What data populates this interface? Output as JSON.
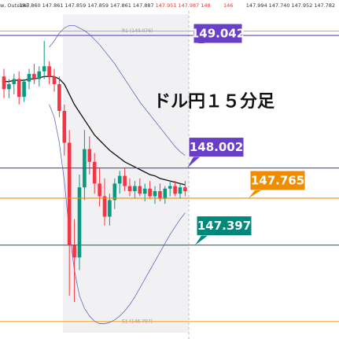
{
  "chart_data": {
    "type": "candlestick",
    "title": "ドル円１５分足",
    "ticker": [
      "ow, Outside)",
      "147.860",
      "147.861",
      "147.859",
      "147.859",
      "147.861",
      "147.887",
      "147.951",
      "147.987",
      "148",
      "146",
      "147.994",
      "147.740",
      "147.952",
      "147.782"
    ],
    "ylim": [
      146.66,
      149.32
    ],
    "open": [
      148.72,
      148.62,
      148.66,
      148.7,
      148.56,
      148.68,
      148.74,
      148.7,
      148.76,
      148.8,
      148.72,
      148.66,
      148.45,
      148.2,
      147.4,
      147.3,
      147.85,
      148.15,
      148.05,
      147.88,
      147.78,
      147.62,
      147.75,
      147.88,
      147.94,
      147.86,
      147.82,
      147.86,
      147.8,
      147.84,
      147.78,
      147.82,
      147.76,
      147.84,
      147.86,
      147.8,
      147.85
    ],
    "high": [
      148.78,
      148.7,
      148.74,
      148.76,
      148.7,
      148.78,
      148.82,
      148.8,
      149.0,
      148.84,
      148.78,
      148.72,
      148.5,
      148.3,
      147.6,
      147.95,
      148.3,
      148.25,
      148.12,
      148.0,
      147.92,
      147.8,
      147.92,
      147.98,
      148.0,
      147.92,
      147.9,
      147.92,
      147.88,
      147.9,
      147.86,
      147.88,
      147.86,
      147.9,
      147.9,
      147.88,
      147.9
    ],
    "low": [
      148.55,
      148.55,
      148.58,
      148.5,
      148.52,
      148.62,
      148.66,
      148.64,
      148.7,
      148.66,
      148.6,
      148.4,
      148.1,
      147.0,
      146.95,
      147.2,
      147.75,
      147.95,
      147.8,
      147.7,
      147.55,
      147.55,
      147.68,
      147.8,
      147.82,
      147.78,
      147.76,
      147.78,
      147.74,
      147.76,
      147.72,
      147.74,
      147.72,
      147.78,
      147.78,
      147.76,
      147.78
    ],
    "close": [
      148.62,
      148.66,
      148.7,
      148.56,
      148.68,
      148.74,
      148.7,
      148.76,
      148.8,
      148.72,
      148.66,
      148.45,
      148.2,
      147.4,
      147.3,
      147.85,
      148.15,
      148.05,
      147.88,
      147.78,
      147.62,
      147.75,
      147.88,
      147.94,
      147.86,
      147.82,
      147.86,
      147.8,
      147.84,
      147.78,
      147.82,
      147.76,
      147.84,
      147.86,
      147.8,
      147.85,
      147.82
    ],
    "up_color": "#089981",
    "down_color": "#f23645",
    "series": [
      {
        "color": "#111111",
        "values": [
          148.68,
          148.68,
          148.69,
          148.69,
          148.69,
          148.7,
          148.7,
          148.71,
          148.72,
          148.72,
          148.72,
          148.7,
          148.66,
          148.58,
          148.5,
          148.44,
          148.38,
          148.32,
          148.26,
          148.22,
          148.18,
          148.14,
          148.11,
          148.08,
          148.05,
          148.03,
          148.01,
          147.99,
          147.97,
          147.95,
          147.94,
          147.92,
          147.91,
          147.9,
          147.89,
          147.88,
          147.87
        ]
      },
      {
        "color": "#5c6bc0",
        "values": [
          null,
          null,
          null,
          null,
          null,
          null,
          null,
          null,
          null,
          148.95,
          149.0,
          149.06,
          149.1,
          149.12,
          149.12,
          149.1,
          149.08,
          149.05,
          149.01,
          148.97,
          148.92,
          148.87,
          148.82,
          148.76,
          148.7,
          148.64,
          148.58,
          148.52,
          148.47,
          148.42,
          148.37,
          148.32,
          148.27,
          148.22,
          148.17,
          148.13,
          148.1
        ]
      },
      {
        "color": "#5c6bc0",
        "values": [
          null,
          null,
          null,
          null,
          null,
          null,
          null,
          null,
          null,
          148.5,
          148.4,
          148.2,
          147.9,
          147.5,
          147.2,
          147.0,
          146.9,
          146.84,
          146.8,
          146.78,
          146.78,
          146.79,
          146.81,
          146.84,
          146.88,
          146.93,
          146.99,
          147.06,
          147.13,
          147.2,
          147.27,
          147.34,
          147.41,
          147.48,
          147.54,
          147.6,
          147.65
        ]
      }
    ],
    "levels": [
      {
        "value": 149.042,
        "color": "#6a3fc8"
      },
      {
        "value": 148.002,
        "color": "#6a3fc8"
      },
      {
        "value": 147.765,
        "color": "#f08c00"
      },
      {
        "value": 147.397,
        "color": "#00897b"
      }
    ],
    "pivots": [
      {
        "value": 149.076,
        "label": "R1 (149.076)",
        "color": "#f5a623"
      },
      {
        "value": 146.797,
        "label": "S1 (146.797)",
        "color": "#f5a623"
      }
    ]
  }
}
